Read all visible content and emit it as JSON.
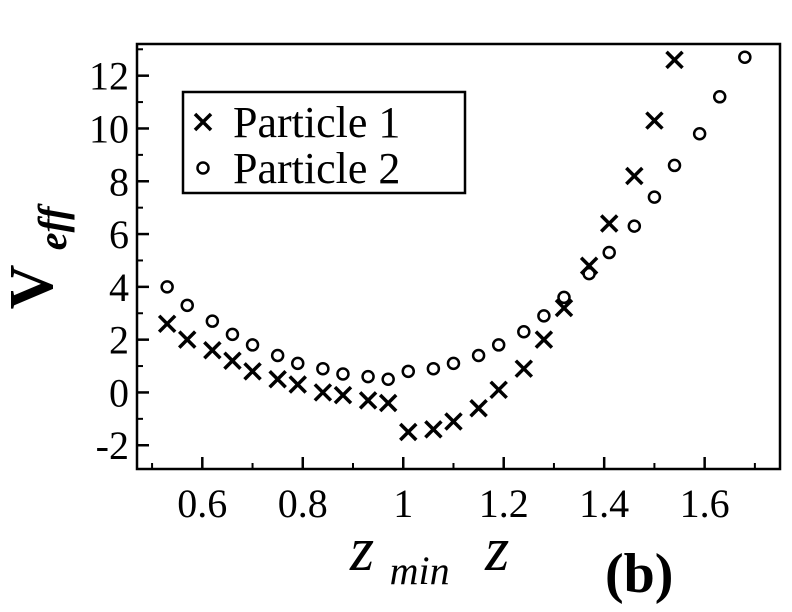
{
  "chart_data": {
    "type": "scatter",
    "title": "",
    "panel_label": "(b)",
    "ylabel": {
      "main": "V",
      "sub": "eff"
    },
    "xlabel": {
      "main": "z",
      "sub": "min",
      "second": "z"
    },
    "xlim": [
      0.47,
      1.75
    ],
    "ylim": [
      -2.9,
      13.2
    ],
    "xticks": [
      0.6,
      0.8,
      1.0,
      1.2,
      1.4,
      1.6
    ],
    "xtick_labels": [
      "0.6",
      "0.8",
      "1",
      "1.2",
      "1.4",
      "1.6"
    ],
    "yticks": [
      -2,
      0,
      2,
      4,
      6,
      8,
      10,
      12
    ],
    "ytick_labels": [
      "-2",
      "0",
      "2",
      "4",
      "6",
      "8",
      "10",
      "12"
    ],
    "grid": false,
    "legend_position": "top-left",
    "series": [
      {
        "name": "Particle 1",
        "marker": "x",
        "x": [
          0.53,
          0.57,
          0.62,
          0.66,
          0.7,
          0.75,
          0.79,
          0.84,
          0.88,
          0.93,
          0.97,
          1.01,
          1.06,
          1.1,
          1.15,
          1.19,
          1.24,
          1.28,
          1.32,
          1.37,
          1.41,
          1.46,
          1.5,
          1.54
        ],
        "y": [
          2.6,
          2.0,
          1.6,
          1.2,
          0.8,
          0.5,
          0.3,
          0.0,
          -0.1,
          -0.3,
          -0.4,
          -1.5,
          -1.4,
          -1.1,
          -0.6,
          0.1,
          0.9,
          2.0,
          3.2,
          4.8,
          6.4,
          8.2,
          10.3,
          12.6
        ]
      },
      {
        "name": "Particle 2",
        "marker": "circle",
        "x": [
          0.53,
          0.57,
          0.62,
          0.66,
          0.7,
          0.75,
          0.79,
          0.84,
          0.88,
          0.93,
          0.97,
          1.01,
          1.06,
          1.1,
          1.15,
          1.19,
          1.24,
          1.28,
          1.32,
          1.37,
          1.41,
          1.46,
          1.5,
          1.54,
          1.59,
          1.63,
          1.68
        ],
        "y": [
          4.0,
          3.3,
          2.7,
          2.2,
          1.8,
          1.4,
          1.1,
          0.9,
          0.7,
          0.6,
          0.5,
          0.8,
          0.9,
          1.1,
          1.4,
          1.8,
          2.3,
          2.9,
          3.6,
          4.5,
          5.3,
          6.3,
          7.4,
          8.6,
          9.8,
          11.2,
          12.7
        ]
      }
    ]
  }
}
